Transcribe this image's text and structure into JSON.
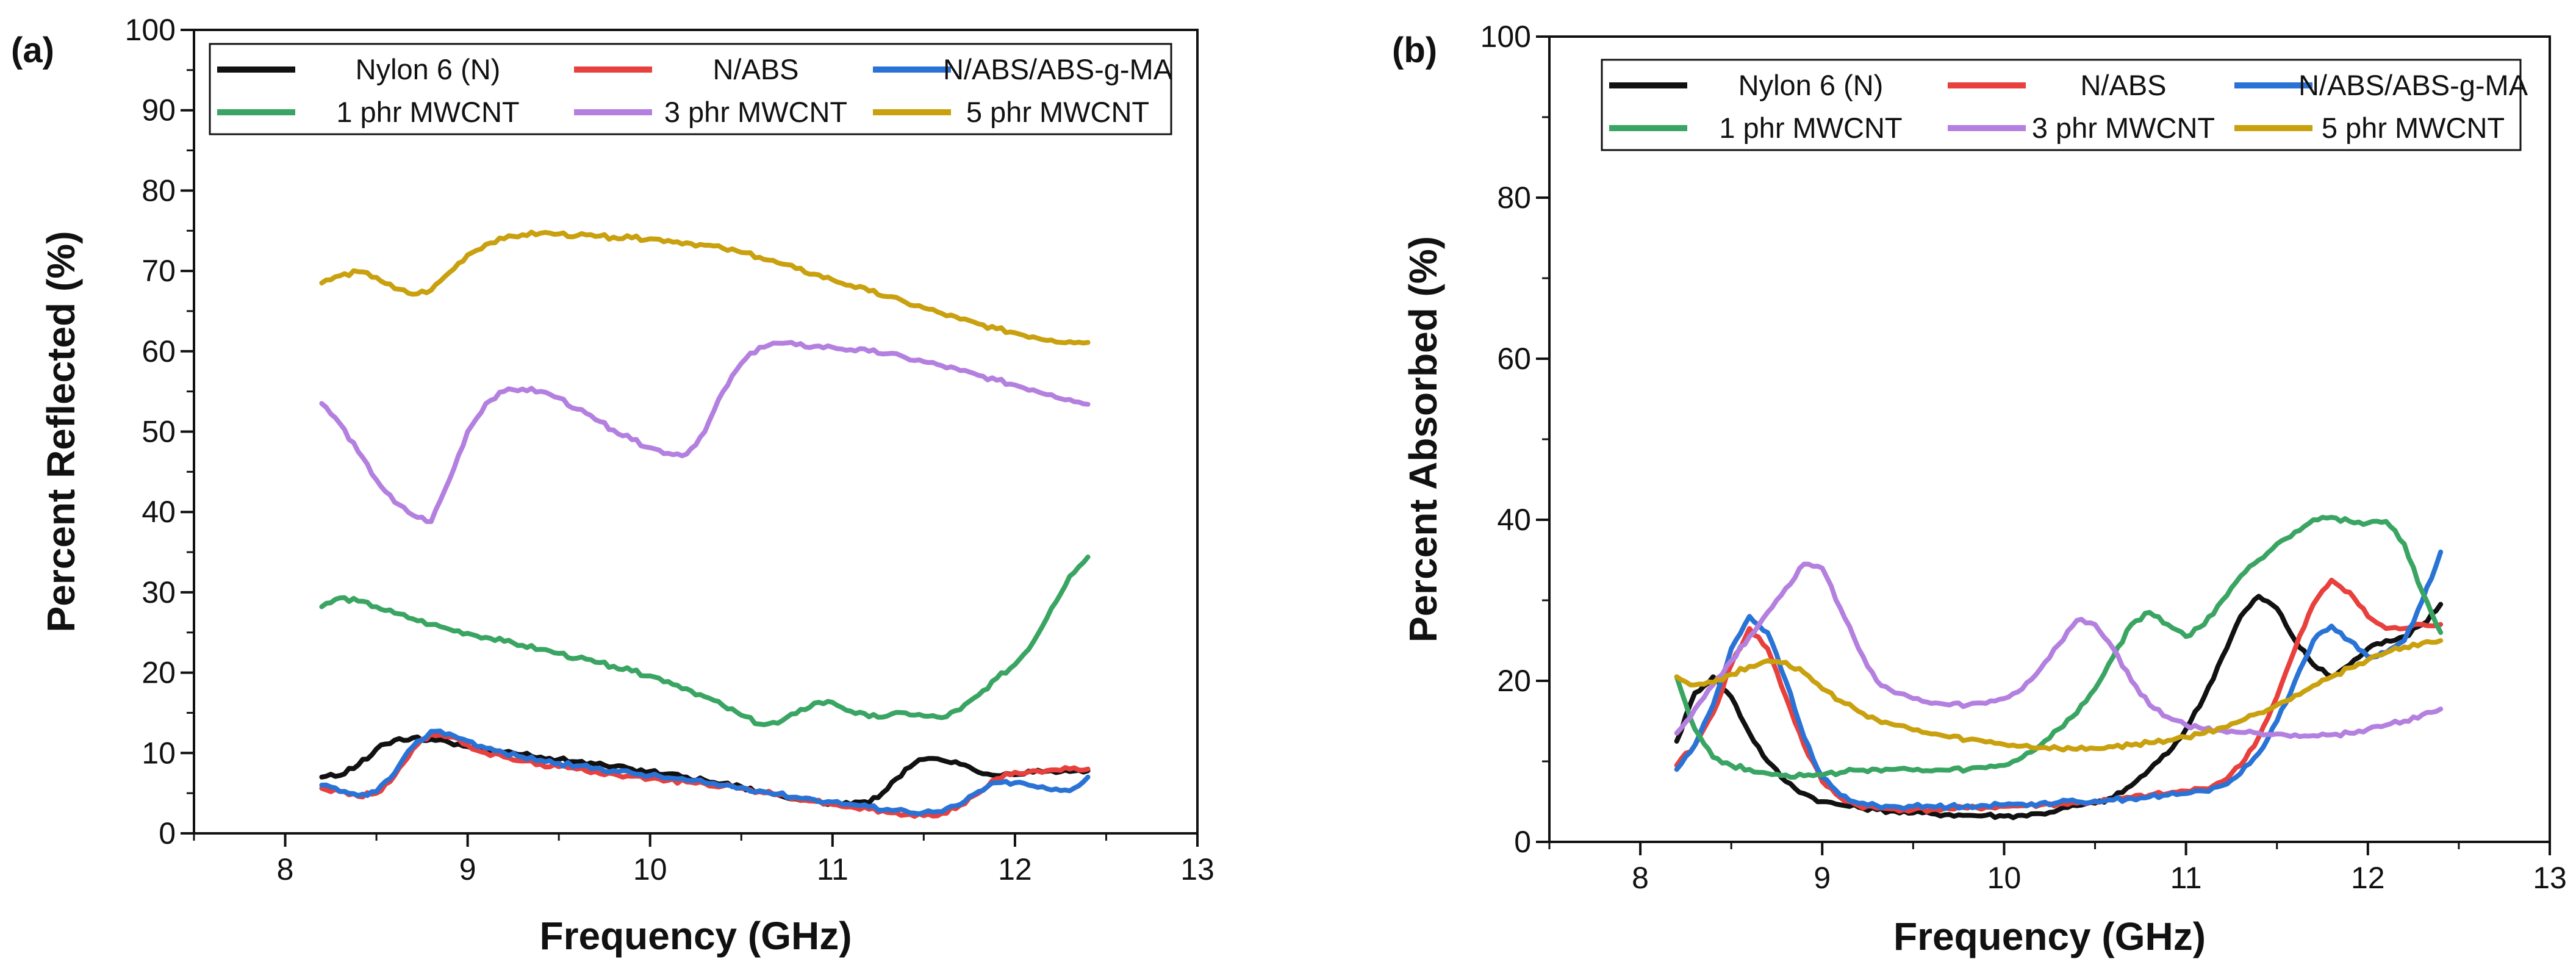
{
  "series_colors": {
    "nylon": "#111111",
    "nabs": "#e8403d",
    "nabsma": "#2a73d6",
    "p1": "#3aa563",
    "p3": "#b480e0",
    "p5": "#c9a00e"
  },
  "chart_data": [
    {
      "id": "a",
      "type": "line",
      "panel_label": "(a)",
      "title": "",
      "xlabel": "Frequency (GHz)",
      "ylabel": "Percent Reflected (%)",
      "xlim": [
        7.5,
        13
      ],
      "ylim": [
        0,
        100
      ],
      "xticks": [
        8,
        9,
        10,
        11,
        12,
        13
      ],
      "yticks": [
        0,
        10,
        20,
        30,
        40,
        50,
        60,
        70,
        80,
        90,
        100
      ],
      "legend_position": "top",
      "x": [
        8.2,
        8.3,
        8.4,
        8.5,
        8.6,
        8.7,
        8.8,
        8.9,
        9.0,
        9.1,
        9.2,
        9.3,
        9.4,
        9.5,
        9.6,
        9.7,
        9.8,
        9.9,
        10.0,
        10.1,
        10.2,
        10.3,
        10.4,
        10.5,
        10.6,
        10.7,
        10.8,
        10.9,
        11.0,
        11.1,
        11.2,
        11.3,
        11.4,
        11.5,
        11.6,
        11.7,
        11.8,
        11.9,
        12.0,
        12.1,
        12.2,
        12.3,
        12.4
      ],
      "series": [
        {
          "key": "nylon",
          "name": "Nylon 6 (N)",
          "values": [
            7.0,
            7.2,
            8.5,
            10.5,
            11.6,
            11.9,
            11.7,
            11.3,
            10.8,
            10.4,
            10.1,
            9.8,
            9.5,
            9.2,
            8.9,
            8.6,
            8.3,
            8.0,
            7.7,
            7.4,
            7.0,
            6.6,
            6.2,
            5.8,
            5.2,
            4.8,
            4.3,
            4.0,
            3.8,
            3.6,
            3.8,
            5.5,
            8.0,
            9.2,
            9.1,
            8.6,
            7.6,
            7.2,
            7.3,
            7.6,
            7.8,
            7.7,
            7.8
          ]
        },
        {
          "key": "nabs",
          "name": "N/ABS",
          "values": [
            5.6,
            5.2,
            4.6,
            5.0,
            7.2,
            10.5,
            12.4,
            12.0,
            11.0,
            10.0,
            9.5,
            9.0,
            8.6,
            8.3,
            8.0,
            7.7,
            7.4,
            7.1,
            6.8,
            6.6,
            6.4,
            6.2,
            5.9,
            5.6,
            5.2,
            4.8,
            4.4,
            4.0,
            3.6,
            3.3,
            3.0,
            2.6,
            2.3,
            2.2,
            2.5,
            3.5,
            5.0,
            6.8,
            7.6,
            7.8,
            7.9,
            8.0,
            8.0
          ]
        },
        {
          "key": "nabsma",
          "name": "N/ABS/ABS-g-MA",
          "values": [
            6.0,
            5.2,
            4.7,
            5.2,
            7.5,
            10.8,
            12.7,
            12.4,
            11.5,
            10.6,
            10.0,
            9.5,
            9.1,
            8.7,
            8.4,
            8.1,
            7.8,
            7.5,
            7.2,
            6.9,
            6.6,
            6.3,
            6.0,
            5.7,
            5.3,
            4.9,
            4.5,
            4.2,
            3.9,
            3.6,
            3.3,
            3.0,
            2.8,
            2.6,
            2.7,
            3.6,
            5.2,
            6.3,
            6.3,
            5.9,
            5.4,
            5.3,
            7.0
          ]
        },
        {
          "key": "p1",
          "name": "1 phr MWCNT",
          "values": [
            28.2,
            29.3,
            28.9,
            28.2,
            27.4,
            26.7,
            26.0,
            25.4,
            24.9,
            24.4,
            23.9,
            23.4,
            22.9,
            22.4,
            21.8,
            21.3,
            20.8,
            20.2,
            19.6,
            18.9,
            18.0,
            17.0,
            15.9,
            14.7,
            13.6,
            13.7,
            14.9,
            16.2,
            16.3,
            15.2,
            14.5,
            14.6,
            15.0,
            14.6,
            14.4,
            15.4,
            17.2,
            19.3,
            21.0,
            23.8,
            28.0,
            32.0,
            34.4
          ]
        },
        {
          "key": "p3",
          "name": "3 phr MWCNT",
          "values": [
            53.5,
            51.0,
            47.5,
            44.0,
            41.2,
            39.6,
            38.8,
            44.0,
            50.0,
            53.5,
            55.0,
            55.3,
            55.0,
            54.2,
            52.8,
            51.5,
            50.2,
            49.0,
            48.0,
            47.3,
            47.2,
            50.0,
            55.0,
            58.5,
            60.5,
            61.0,
            60.8,
            60.6,
            60.5,
            60.2,
            60.0,
            59.7,
            59.2,
            58.7,
            58.2,
            57.6,
            57.0,
            56.4,
            55.8,
            55.2,
            54.6,
            54.0,
            53.4
          ]
        },
        {
          "key": "p5",
          "name": "5 phr MWCNT",
          "values": [
            68.5,
            69.4,
            69.9,
            69.2,
            67.8,
            67.1,
            67.6,
            69.8,
            72.0,
            73.3,
            74.0,
            74.5,
            74.7,
            74.6,
            74.4,
            74.3,
            74.2,
            74.1,
            74.0,
            73.8,
            73.5,
            73.2,
            72.8,
            72.3,
            71.7,
            71.0,
            70.3,
            69.6,
            68.9,
            68.2,
            67.5,
            66.8,
            66.1,
            65.4,
            64.7,
            64.0,
            63.4,
            62.8,
            62.3,
            61.8,
            61.4,
            61.2,
            61.1
          ]
        }
      ]
    },
    {
      "id": "b",
      "type": "line",
      "panel_label": "(b)",
      "title": "",
      "xlabel": "Frequency (GHz)",
      "ylabel": "Percent Absorbed (%)",
      "xlim": [
        7.5,
        13
      ],
      "ylim": [
        0,
        100
      ],
      "xticks": [
        8,
        9,
        10,
        11,
        12,
        13
      ],
      "yticks": [
        0,
        20,
        40,
        60,
        80,
        100
      ],
      "legend_position": "top",
      "x": [
        8.2,
        8.3,
        8.4,
        8.5,
        8.6,
        8.7,
        8.8,
        8.9,
        9.0,
        9.1,
        9.2,
        9.3,
        9.4,
        9.5,
        9.6,
        9.7,
        9.8,
        9.9,
        10.0,
        10.1,
        10.2,
        10.3,
        10.4,
        10.5,
        10.6,
        10.7,
        10.8,
        10.9,
        11.0,
        11.1,
        11.2,
        11.3,
        11.4,
        11.5,
        11.6,
        11.7,
        11.8,
        11.9,
        12.0,
        12.1,
        12.2,
        12.3,
        12.4
      ],
      "series": [
        {
          "key": "nylon",
          "name": "Nylon 6 (N)",
          "values": [
            12.5,
            18.5,
            20.5,
            18.0,
            13.5,
            10.0,
            7.5,
            6.0,
            5.0,
            4.6,
            4.3,
            4.0,
            3.8,
            3.6,
            3.5,
            3.4,
            3.3,
            3.3,
            3.2,
            3.3,
            3.5,
            4.0,
            4.5,
            4.8,
            5.5,
            7.0,
            9.0,
            11.0,
            14.0,
            18.0,
            23.0,
            28.0,
            30.5,
            29.0,
            25.0,
            22.0,
            20.5,
            22.0,
            24.0,
            25.0,
            25.5,
            27.0,
            29.5
          ]
        },
        {
          "key": "nabs",
          "name": "N/ABS",
          "values": [
            9.5,
            12.0,
            16.0,
            22.0,
            26.5,
            24.0,
            18.0,
            12.0,
            7.5,
            5.5,
            4.5,
            4.2,
            4.1,
            4.0,
            4.0,
            4.1,
            4.2,
            4.3,
            4.4,
            4.5,
            4.6,
            4.7,
            4.8,
            5.0,
            5.2,
            5.5,
            5.8,
            6.0,
            6.3,
            6.6,
            7.5,
            9.5,
            13.0,
            18.0,
            24.0,
            29.5,
            32.5,
            31.0,
            28.0,
            26.5,
            26.5,
            27.0,
            27.0
          ]
        },
        {
          "key": "nabsma",
          "name": "N/ABS/ABS-g-MA",
          "values": [
            9.0,
            12.0,
            17.0,
            24.0,
            28.0,
            26.0,
            20.0,
            13.0,
            8.0,
            5.8,
            4.8,
            4.5,
            4.4,
            4.4,
            4.4,
            4.4,
            4.5,
            4.5,
            4.6,
            4.7,
            4.8,
            4.9,
            5.0,
            5.1,
            5.2,
            5.4,
            5.6,
            5.8,
            6.0,
            6.3,
            7.0,
            8.5,
            11.0,
            15.0,
            20.0,
            25.0,
            26.8,
            25.0,
            23.0,
            23.5,
            25.0,
            30.0,
            36.0
          ]
        },
        {
          "key": "p1",
          "name": "1 phr MWCNT",
          "values": [
            20.5,
            14.0,
            10.5,
            9.5,
            9.0,
            8.5,
            8.3,
            8.2,
            8.3,
            8.6,
            8.9,
            9.0,
            9.0,
            8.9,
            8.8,
            8.9,
            9.0,
            9.2,
            9.5,
            10.5,
            12.0,
            14.0,
            16.0,
            19.0,
            23.0,
            27.0,
            28.5,
            27.0,
            25.5,
            27.0,
            30.0,
            33.0,
            35.0,
            37.0,
            38.5,
            40.0,
            40.3,
            39.8,
            39.6,
            39.8,
            37.0,
            31.0,
            26.0
          ]
        },
        {
          "key": "p3",
          "name": "3 phr MWCNT",
          "values": [
            13.5,
            16.5,
            19.5,
            22.5,
            25.5,
            28.5,
            31.5,
            34.5,
            34.0,
            29.0,
            24.0,
            20.0,
            18.5,
            17.8,
            17.2,
            17.0,
            17.0,
            17.2,
            17.8,
            19.0,
            21.5,
            24.5,
            27.5,
            27.0,
            24.0,
            20.0,
            17.0,
            15.5,
            14.5,
            14.0,
            13.8,
            13.6,
            13.5,
            13.4,
            13.3,
            13.2,
            13.3,
            13.5,
            14.0,
            14.5,
            15.0,
            15.8,
            16.5
          ]
        },
        {
          "key": "p5",
          "name": "5 phr MWCNT",
          "values": [
            20.5,
            19.5,
            19.8,
            20.8,
            21.8,
            22.5,
            22.3,
            21.0,
            19.0,
            17.5,
            16.2,
            15.2,
            14.5,
            13.9,
            13.4,
            13.0,
            12.7,
            12.4,
            12.1,
            11.9,
            11.7,
            11.6,
            11.5,
            11.6,
            11.8,
            12.0,
            12.3,
            12.6,
            13.0,
            13.5,
            14.2,
            15.0,
            16.0,
            17.0,
            18.2,
            19.4,
            20.5,
            21.6,
            22.6,
            23.5,
            24.2,
            24.7,
            25.0
          ]
        }
      ]
    }
  ]
}
